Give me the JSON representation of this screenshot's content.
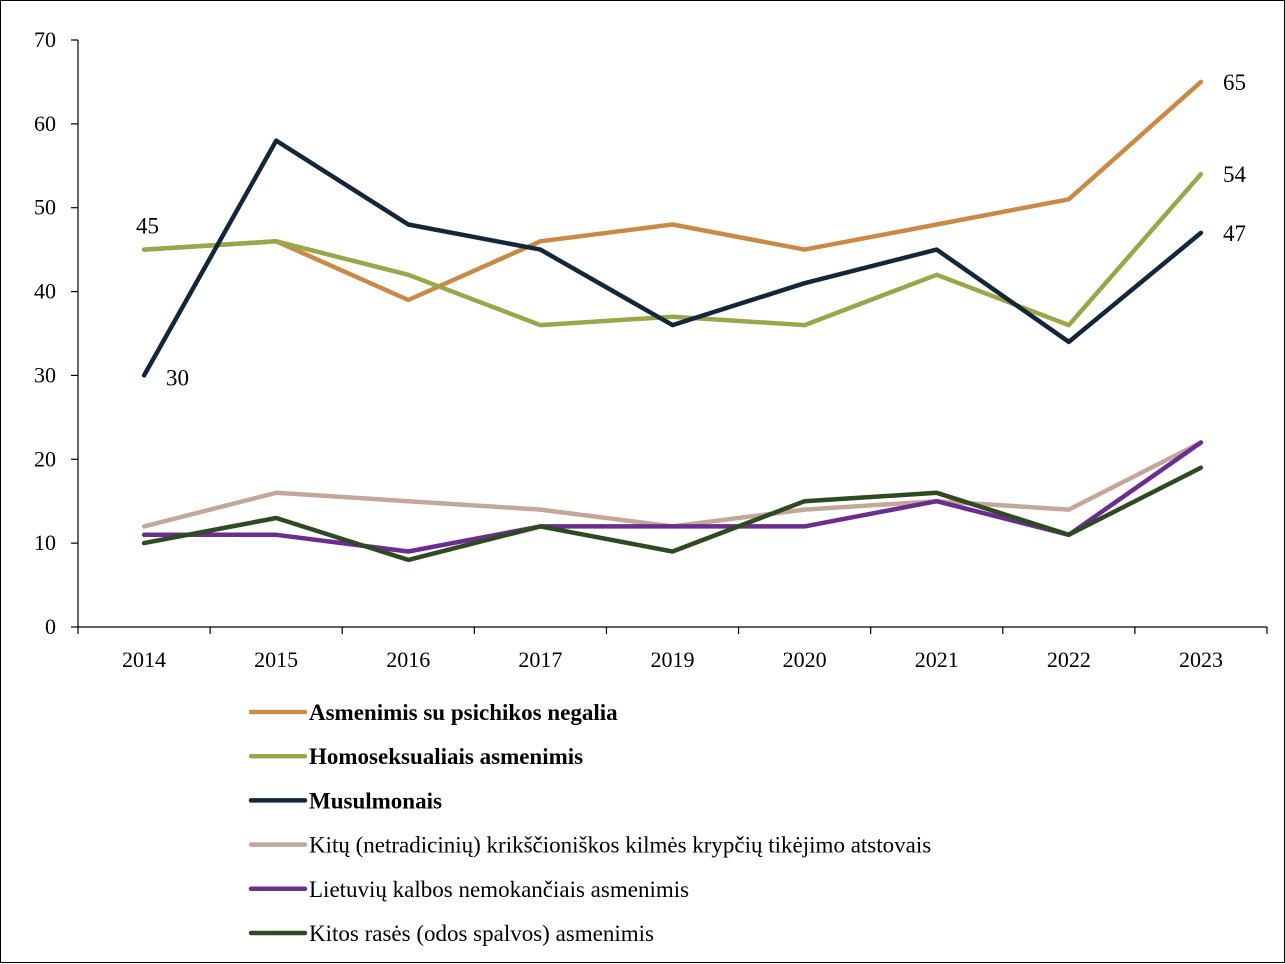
{
  "chart_data": {
    "type": "line",
    "title": "",
    "xlabel": "",
    "ylabel": "",
    "x": [
      "2014",
      "2015",
      "2016",
      "2017",
      "2019",
      "2020",
      "2021",
      "2022",
      "2023"
    ],
    "ylim": [
      0,
      70
    ],
    "yticks": [
      0,
      10,
      20,
      30,
      40,
      50,
      60,
      70
    ],
    "grid": false,
    "legend_position": "bottom",
    "series": [
      {
        "name": "Asmenimis su psichikos negalia",
        "color": "#C98A45",
        "bold": true,
        "values": [
          45,
          46,
          39,
          46,
          48,
          45,
          48,
          51,
          65
        ],
        "labels": [
          "",
          "",
          "",
          "",
          "",
          "",
          "",
          "",
          "65"
        ]
      },
      {
        "name": "Homoseksualiais asmenimis",
        "color": "#9AA64A",
        "bold": true,
        "values": [
          45,
          46,
          42,
          36,
          37,
          36,
          42,
          36,
          54
        ],
        "labels": [
          "45",
          "",
          "",
          "",
          "",
          "",
          "",
          "",
          "54"
        ]
      },
      {
        "name": "Musulmonais",
        "color": "#14273A",
        "bold": true,
        "values": [
          30,
          58,
          48,
          45,
          36,
          41,
          45,
          34,
          47
        ],
        "labels": [
          "30",
          "",
          "",
          "",
          "",
          "",
          "",
          "",
          "47"
        ]
      },
      {
        "name": "Kitų (netradicinių) krikščioniškos kilmės krypčių tikėjimo atstovais",
        "color": "#C4A79B",
        "bold": false,
        "values": [
          12,
          16,
          15,
          14,
          12,
          14,
          15,
          14,
          22
        ],
        "labels": [
          "",
          "",
          "",
          "",
          "",
          "",
          "",
          "",
          ""
        ]
      },
      {
        "name": "Lietuvių kalbos nemokančiais asmenimis",
        "color": "#6B2D90",
        "bold": false,
        "values": [
          11,
          11,
          9,
          12,
          12,
          12,
          15,
          11,
          22
        ],
        "labels": [
          "",
          "",
          "",
          "",
          "",
          "",
          "",
          "",
          ""
        ]
      },
      {
        "name": "Kitos rasės (odos spalvos) asmenimis",
        "color": "#2E4A22",
        "bold": false,
        "values": [
          10,
          13,
          8,
          12,
          9,
          15,
          16,
          11,
          19
        ],
        "labels": [
          "",
          "",
          "",
          "",
          "",
          "",
          "",
          "",
          ""
        ]
      }
    ]
  }
}
